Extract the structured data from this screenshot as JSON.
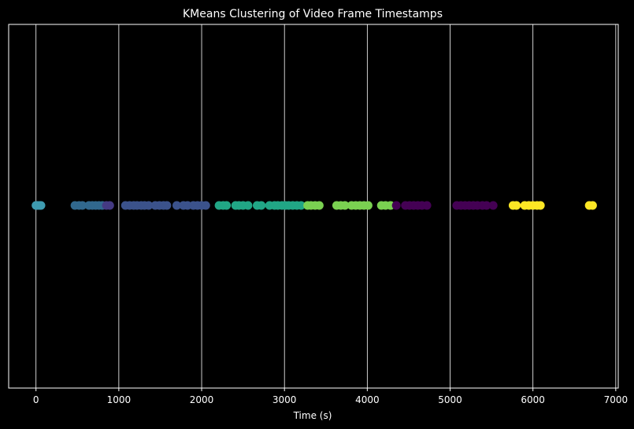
{
  "chart_data": {
    "type": "scatter",
    "title": "KMeans Clustering of Video Frame Timestamps",
    "xlabel": "Time (s)",
    "ylabel": "",
    "xlim": [
      -330,
      7030
    ],
    "xticks": [
      0,
      1000,
      2000,
      3000,
      4000,
      5000,
      6000,
      7000
    ],
    "xtick_labels": [
      "0",
      "1000",
      "2000",
      "3000",
      "4000",
      "5000",
      "6000",
      "7000"
    ],
    "grid": "vertical",
    "background": "#000000",
    "series": [
      {
        "color": "#3e9bb0",
        "x": [
          0,
          20,
          45,
          60
        ]
      },
      {
        "color": "#31688e",
        "x": [
          470,
          520,
          560,
          640,
          680,
          720,
          760,
          800
        ]
      },
      {
        "color": "#443a83",
        "x": [
          850,
          890
        ]
      },
      {
        "color": "#3b528b",
        "x": [
          1080,
          1130,
          1180,
          1220,
          1270,
          1310,
          1360,
          1440,
          1490,
          1540,
          1580,
          1700,
          1780,
          1830,
          1900,
          1950,
          2000,
          2050
        ]
      },
      {
        "color": "#21a685",
        "x": [
          2210,
          2260,
          2300,
          2410,
          2450,
          2500,
          2560,
          2670,
          2720,
          2820,
          2880,
          2920,
          2970,
          3010,
          3050,
          3100,
          3150,
          3200
        ]
      },
      {
        "color": "#7ad151",
        "x": [
          3280,
          3320,
          3370,
          3420,
          3630,
          3680,
          3730,
          3810,
          3860,
          3910,
          3960,
          4010,
          4170,
          4220,
          4280
        ]
      },
      {
        "color": "#440154",
        "x": [
          4350,
          4460,
          4510,
          4560,
          4610,
          4660,
          4720,
          5080,
          5130,
          5180,
          5230,
          5280,
          5330,
          5390,
          5440,
          5520
        ]
      },
      {
        "color": "#fde725",
        "x": [
          5760,
          5800,
          5900,
          5950,
          6000,
          6050,
          6090,
          6680,
          6720
        ]
      }
    ]
  }
}
